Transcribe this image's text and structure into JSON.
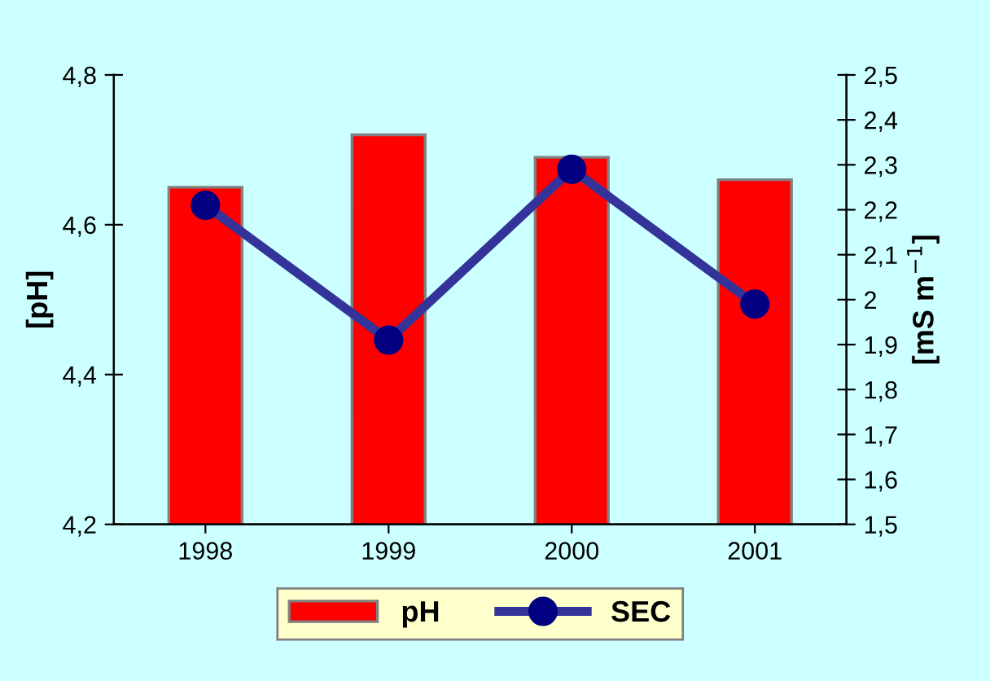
{
  "chart_data": {
    "type": "bar",
    "ylabel": "[pH]",
    "y2label": "[mS m$^{−1}$]",
    "categories": [
      "1998",
      "1999",
      "2000",
      "2001"
    ],
    "series": [
      {
        "name": "pH",
        "color": "#ff0000",
        "values": [
          4.65,
          4.72,
          4.69,
          4.66
        ]
      },
      {
        "name": "SEC",
        "type": "line",
        "axis": "y2",
        "color": "#333399",
        "marker": "circle",
        "values": [
          2.21,
          1.91,
          2.29,
          1.99
        ]
      }
    ],
    "ylim": [
      4.2,
      4.8
    ],
    "yticks": [
      {
        "value": 4.2,
        "label": "4,2"
      },
      {
        "value": 4.4,
        "label": "4,4"
      },
      {
        "value": 4.6,
        "label": "4,6"
      },
      {
        "value": 4.8,
        "label": "4,8"
      }
    ],
    "y2lim": [
      1.5,
      2.5
    ],
    "y2ticks": [
      {
        "value": 1.5,
        "label": "1,5"
      },
      {
        "value": 1.6,
        "label": "1,6"
      },
      {
        "value": 1.7,
        "label": "1,7"
      },
      {
        "value": 1.8,
        "label": "1,8"
      },
      {
        "value": 1.9,
        "label": "1,9"
      },
      2,
      {
        "value": 2.1,
        "label": "2,1"
      },
      {
        "value": 2.2,
        "label": "2,2"
      },
      {
        "value": 2.3,
        "label": "2,3"
      },
      {
        "value": 2.4,
        "label": "2,4"
      },
      {
        "value": 2.5,
        "label": "2,5"
      }
    ],
    "grid": false,
    "legend": "bottom"
  }
}
